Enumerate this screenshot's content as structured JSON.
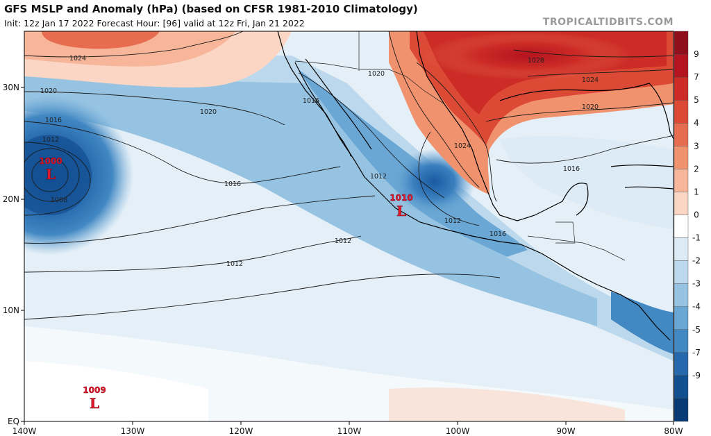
{
  "header": {
    "title": "GFS MSLP and Anomaly (hPa) (based on CFSR 1981-2010 Climatology)",
    "subtitle": "Init: 12z Jan 17 2022   Forecast Hour: [96]   valid at 12z Fri, Jan 21 2022",
    "brand": "TROPICALTIDBITS.COM"
  },
  "map": {
    "lon_labels": [
      "140W",
      "130W",
      "120W",
      "110W",
      "100W",
      "90W",
      "80W"
    ],
    "lat_labels": [
      "30N",
      "20N",
      "10N",
      "EQ"
    ],
    "pressure_centers": [
      {
        "id": "west",
        "value": "1000",
        "symbol": "L"
      },
      {
        "id": "mexico",
        "value": "1010",
        "symbol": "L"
      },
      {
        "id": "southwest",
        "value": "1009",
        "symbol": "L"
      }
    ],
    "isobar_labels": [
      {
        "id": "a",
        "text": "1024"
      },
      {
        "id": "b",
        "text": "1020"
      },
      {
        "id": "c",
        "text": "1016"
      },
      {
        "id": "d",
        "text": "1012"
      },
      {
        "id": "e",
        "text": "1008"
      },
      {
        "id": "f",
        "text": "1020"
      },
      {
        "id": "g",
        "text": "1016"
      },
      {
        "id": "h",
        "text": "1016"
      },
      {
        "id": "i",
        "text": "1012"
      },
      {
        "id": "j",
        "text": "1012"
      },
      {
        "id": "k",
        "text": "1012"
      },
      {
        "id": "l",
        "text": "1012"
      },
      {
        "id": "m",
        "text": "1020"
      },
      {
        "id": "n",
        "text": "1024"
      },
      {
        "id": "o",
        "text": "1028"
      },
      {
        "id": "p",
        "text": "1024"
      },
      {
        "id": "q",
        "text": "1020"
      },
      {
        "id": "r",
        "text": "1016"
      },
      {
        "id": "s",
        "text": "1016"
      }
    ]
  },
  "colorbar": {
    "labels": [
      "9",
      "7",
      "5",
      "4",
      "3",
      "2",
      "1",
      "0",
      "-1",
      "-2",
      "-3",
      "-4",
      "-5",
      "-7",
      "-9"
    ],
    "colors": [
      "#8f0f1c",
      "#b3141f",
      "#cc2b26",
      "#dc4a36",
      "#e86d50",
      "#f1926f",
      "#f7b59a",
      "#fbd6c4",
      "#ffffff",
      "#dcebf5",
      "#bcd8ec",
      "#96c3e2",
      "#6aa7d4",
      "#4288c3",
      "#2568ac",
      "#124f91",
      "#083a75"
    ]
  }
}
